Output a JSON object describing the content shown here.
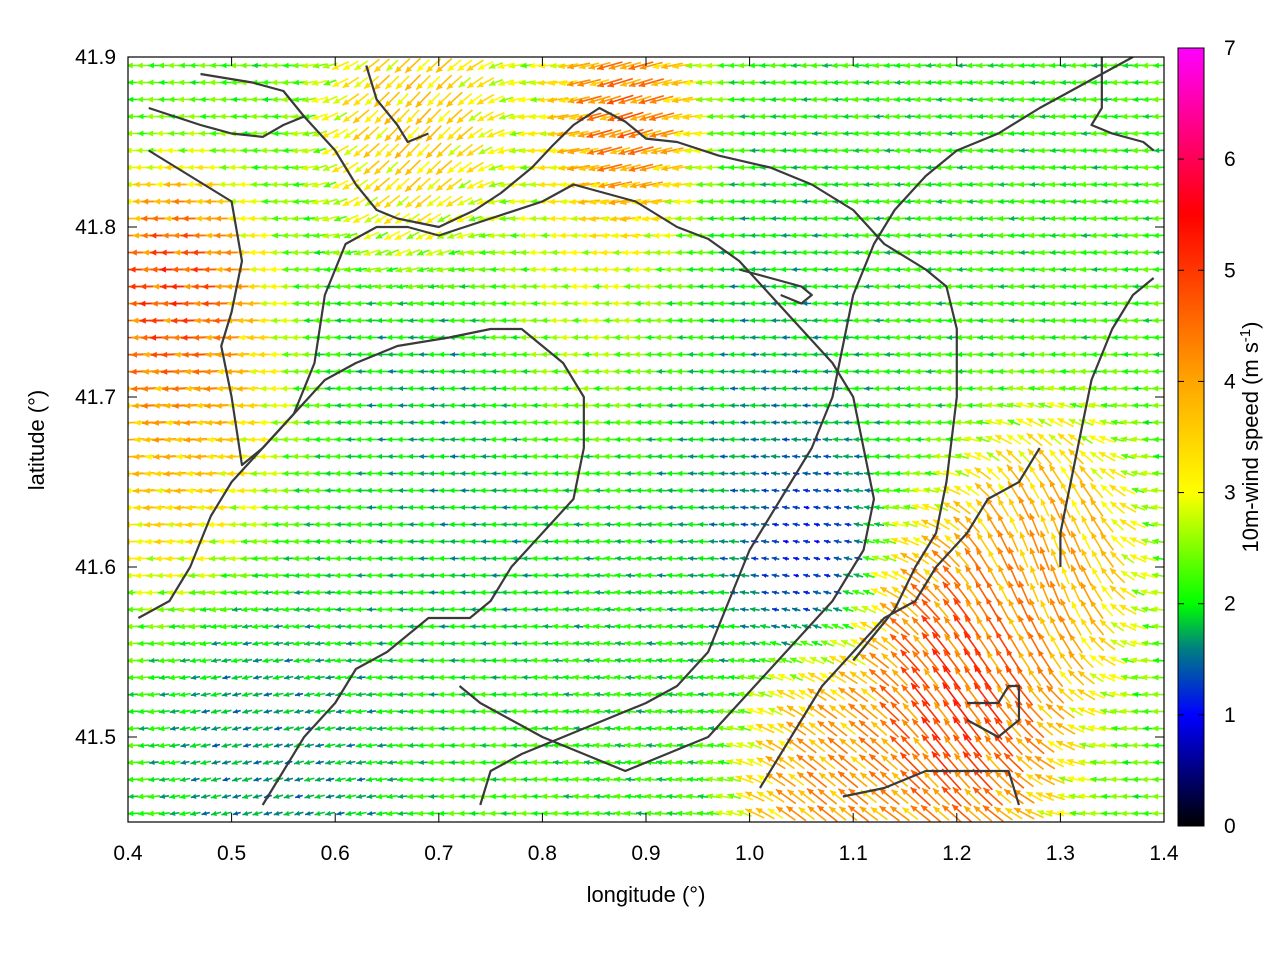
{
  "chart_data": {
    "type": "vector-field",
    "xlabel": "longitude (°)",
    "ylabel": "latitude (°)",
    "xlim": [
      0.4,
      1.4
    ],
    "ylim": [
      41.45,
      41.9
    ],
    "xticks": [
      "0.4",
      "0.5",
      "0.6",
      "0.7",
      "0.8",
      "0.9",
      "1.0",
      "1.1",
      "1.2",
      "1.3",
      "1.4"
    ],
    "yticks": [
      "41.5",
      "41.6",
      "41.7",
      "41.8",
      "41.9"
    ],
    "grid": false,
    "colorbar": {
      "label_main": "10m-wind speed (m s",
      "label_sup": "-1",
      "label_close": ")",
      "range": [
        0,
        7
      ],
      "ticks": [
        "0",
        "1",
        "2",
        "3",
        "4",
        "5",
        "6",
        "7"
      ],
      "stops": [
        {
          "v": 0.0,
          "color": "#000000"
        },
        {
          "v": 1.0,
          "color": "#0000ff"
        },
        {
          "v": 1.6,
          "color": "#008080"
        },
        {
          "v": 2.0,
          "color": "#00ff00"
        },
        {
          "v": 3.0,
          "color": "#ffff00"
        },
        {
          "v": 4.0,
          "color": "#ffa500"
        },
        {
          "v": 5.5,
          "color": "#ff0000"
        },
        {
          "v": 7.0,
          "color": "#ff00ff"
        }
      ]
    },
    "wind_field": {
      "lon_step": 0.01,
      "lat_step": 0.01,
      "regimes": [
        {
          "lon": 0.45,
          "lat": 41.75,
          "speed": 5.2,
          "dir_deg": 180,
          "radius": 0.05
        },
        {
          "lon": 0.47,
          "lat": 41.68,
          "speed": 3.8,
          "dir_deg": 185,
          "radius": 0.07
        },
        {
          "lon": 0.88,
          "lat": 41.85,
          "speed": 5.0,
          "dir_deg": 205,
          "radius": 0.05
        },
        {
          "lon": 0.68,
          "lat": 41.85,
          "speed": 3.6,
          "dir_deg": 235,
          "radius": 0.06
        },
        {
          "lon": 0.85,
          "lat": 41.75,
          "speed": 3.1,
          "dir_deg": 180,
          "radius": 0.09
        },
        {
          "lon": 0.95,
          "lat": 41.68,
          "speed": 1.5,
          "dir_deg": 180,
          "radius": 0.12
        },
        {
          "lon": 0.72,
          "lat": 41.68,
          "speed": 1.6,
          "dir_deg": 180,
          "radius": 0.1
        },
        {
          "lon": 1.2,
          "lat": 41.53,
          "speed": 5.0,
          "dir_deg": 120,
          "radius": 0.07
        },
        {
          "lon": 1.07,
          "lat": 41.48,
          "speed": 4.2,
          "dir_deg": 135,
          "radius": 0.06
        },
        {
          "lon": 1.28,
          "lat": 41.61,
          "speed": 4.0,
          "dir_deg": 100,
          "radius": 0.06
        },
        {
          "lon": 0.6,
          "lat": 41.6,
          "speed": 2.0,
          "dir_deg": 180,
          "radius": 0.1
        },
        {
          "lon": 1.2,
          "lat": 41.85,
          "speed": 2.0,
          "dir_deg": 185,
          "radius": 0.14
        },
        {
          "lon": 0.55,
          "lat": 41.5,
          "speed": 1.4,
          "dir_deg": 200,
          "radius": 0.08
        },
        {
          "lon": 0.9,
          "lat": 41.55,
          "speed": 2.0,
          "dir_deg": 170,
          "radius": 0.08
        },
        {
          "lon": 1.05,
          "lat": 41.61,
          "speed": 0.7,
          "dir_deg": 160,
          "radius": 0.05
        }
      ]
    },
    "contours": [
      [
        [
          0.42,
          41.87
        ],
        [
          0.47,
          41.86
        ],
        [
          0.5,
          41.855
        ],
        [
          0.53,
          41.853
        ],
        [
          0.55,
          41.86
        ],
        [
          0.57,
          41.865
        ],
        [
          0.6,
          41.845
        ],
        [
          0.62,
          41.825
        ],
        [
          0.64,
          41.81
        ],
        [
          0.66,
          41.805
        ],
        [
          0.7,
          41.8
        ],
        [
          0.735,
          41.81
        ],
        [
          0.76,
          41.82
        ],
        [
          0.79,
          41.835
        ],
        [
          0.81,
          41.848
        ],
        [
          0.83,
          41.86
        ],
        [
          0.855,
          41.87
        ],
        [
          0.88,
          41.862
        ],
        [
          0.9,
          41.852
        ],
        [
          0.93,
          41.85
        ],
        [
          0.97,
          41.842
        ],
        [
          1.02,
          41.835
        ],
        [
          1.06,
          41.825
        ],
        [
          1.1,
          41.81
        ],
        [
          1.13,
          41.79
        ],
        [
          1.17,
          41.775
        ],
        [
          1.19,
          41.765
        ],
        [
          1.2,
          41.74
        ],
        [
          1.2,
          41.7
        ],
        [
          1.19,
          41.65
        ],
        [
          1.18,
          41.62
        ],
        [
          1.16,
          41.6
        ],
        [
          1.14,
          41.575
        ],
        [
          1.12,
          41.56
        ],
        [
          1.1,
          41.545
        ]
      ],
      [
        [
          0.42,
          41.845
        ],
        [
          0.46,
          41.83
        ],
        [
          0.5,
          41.815
        ],
        [
          0.51,
          41.78
        ],
        [
          0.5,
          41.75
        ],
        [
          0.49,
          41.73
        ],
        [
          0.5,
          41.7
        ],
        [
          0.51,
          41.66
        ],
        [
          0.53,
          41.67
        ],
        [
          0.56,
          41.69
        ],
        [
          0.58,
          41.72
        ],
        [
          0.59,
          41.76
        ],
        [
          0.61,
          41.79
        ],
        [
          0.64,
          41.8
        ],
        [
          0.67,
          41.8
        ],
        [
          0.7,
          41.795
        ],
        [
          0.75,
          41.805
        ],
        [
          0.8,
          41.815
        ],
        [
          0.83,
          41.825
        ],
        [
          0.86,
          41.82
        ],
        [
          0.89,
          41.815
        ],
        [
          0.93,
          41.8
        ],
        [
          0.96,
          41.793
        ],
        [
          0.99,
          41.78
        ],
        [
          1.02,
          41.76
        ],
        [
          1.05,
          41.74
        ],
        [
          1.08,
          41.72
        ],
        [
          1.1,
          41.7
        ],
        [
          1.11,
          41.67
        ],
        [
          1.12,
          41.64
        ],
        [
          1.11,
          41.61
        ],
        [
          1.08,
          41.58
        ],
        [
          1.05,
          41.56
        ],
        [
          1.02,
          41.54
        ],
        [
          0.99,
          41.52
        ],
        [
          0.96,
          41.5
        ],
        [
          0.92,
          41.49
        ],
        [
          0.88,
          41.48
        ],
        [
          0.84,
          41.49
        ],
        [
          0.8,
          41.5
        ],
        [
          0.77,
          41.51
        ],
        [
          0.74,
          41.52
        ],
        [
          0.72,
          41.53
        ]
      ],
      [
        [
          0.41,
          41.57
        ],
        [
          0.44,
          41.58
        ],
        [
          0.46,
          41.6
        ],
        [
          0.48,
          41.63
        ],
        [
          0.5,
          41.65
        ],
        [
          0.53,
          41.67
        ],
        [
          0.56,
          41.69
        ],
        [
          0.59,
          41.71
        ],
        [
          0.62,
          41.72
        ],
        [
          0.66,
          41.73
        ],
        [
          0.71,
          41.735
        ],
        [
          0.75,
          41.74
        ],
        [
          0.78,
          41.74
        ],
        [
          0.8,
          41.73
        ],
        [
          0.82,
          41.72
        ],
        [
          0.84,
          41.7
        ],
        [
          0.84,
          41.67
        ],
        [
          0.83,
          41.64
        ],
        [
          0.8,
          41.62
        ],
        [
          0.77,
          41.6
        ],
        [
          0.75,
          41.58
        ],
        [
          0.73,
          41.57
        ],
        [
          0.71,
          41.57
        ],
        [
          0.69,
          41.57
        ],
        [
          0.67,
          41.56
        ],
        [
          0.65,
          41.55
        ],
        [
          0.62,
          41.54
        ],
        [
          0.6,
          41.52
        ],
        [
          0.57,
          41.5
        ],
        [
          0.55,
          41.48
        ],
        [
          0.53,
          41.46
        ]
      ],
      [
        [
          0.74,
          41.46
        ],
        [
          0.75,
          41.48
        ],
        [
          0.78,
          41.49
        ],
        [
          0.82,
          41.5
        ],
        [
          0.86,
          41.51
        ],
        [
          0.9,
          41.52
        ],
        [
          0.93,
          41.53
        ],
        [
          0.96,
          41.55
        ],
        [
          0.98,
          41.58
        ],
        [
          1.0,
          41.61
        ],
        [
          1.03,
          41.64
        ],
        [
          1.06,
          41.67
        ],
        [
          1.08,
          41.7
        ],
        [
          1.09,
          41.73
        ],
        [
          1.1,
          41.76
        ],
        [
          1.12,
          41.79
        ],
        [
          1.14,
          41.81
        ],
        [
          1.17,
          41.83
        ],
        [
          1.2,
          41.845
        ],
        [
          1.24,
          41.855
        ],
        [
          1.28,
          41.87
        ],
        [
          1.31,
          41.88
        ],
        [
          1.34,
          41.89
        ],
        [
          1.37,
          41.9
        ]
      ],
      [
        [
          1.3,
          41.6
        ],
        [
          1.3,
          41.62
        ],
        [
          1.31,
          41.65
        ],
        [
          1.32,
          41.68
        ],
        [
          1.33,
          41.71
        ],
        [
          1.35,
          41.74
        ],
        [
          1.37,
          41.76
        ],
        [
          1.39,
          41.77
        ]
      ],
      [
        [
          1.01,
          41.47
        ],
        [
          1.04,
          41.5
        ],
        [
          1.07,
          41.53
        ],
        [
          1.1,
          41.55
        ],
        [
          1.13,
          41.57
        ],
        [
          1.16,
          41.58
        ],
        [
          1.18,
          41.6
        ],
        [
          1.21,
          41.62
        ],
        [
          1.23,
          41.64
        ],
        [
          1.26,
          41.65
        ],
        [
          1.28,
          41.67
        ]
      ],
      [
        [
          1.21,
          41.52
        ],
        [
          1.24,
          41.52
        ],
        [
          1.25,
          41.53
        ],
        [
          1.26,
          41.53
        ],
        [
          1.26,
          41.51
        ],
        [
          1.24,
          41.5
        ],
        [
          1.21,
          41.51
        ]
      ],
      [
        [
          1.09,
          41.465
        ],
        [
          1.13,
          41.47
        ],
        [
          1.17,
          41.48
        ],
        [
          1.21,
          41.48
        ],
        [
          1.25,
          41.48
        ],
        [
          1.26,
          41.46
        ]
      ],
      [
        [
          0.99,
          41.775
        ],
        [
          1.02,
          41.77
        ],
        [
          1.05,
          41.765
        ],
        [
          1.06,
          41.76
        ],
        [
          1.05,
          41.755
        ],
        [
          1.03,
          41.76
        ]
      ],
      [
        [
          0.47,
          41.89
        ],
        [
          0.52,
          41.885
        ],
        [
          0.55,
          41.88
        ],
        [
          0.57,
          41.865
        ]
      ],
      [
        [
          0.63,
          41.895
        ],
        [
          0.64,
          41.875
        ],
        [
          0.66,
          41.86
        ],
        [
          0.67,
          41.85
        ],
        [
          0.69,
          41.855
        ]
      ],
      [
        [
          1.34,
          41.9
        ],
        [
          1.34,
          41.87
        ],
        [
          1.33,
          41.86
        ],
        [
          1.35,
          41.855
        ],
        [
          1.38,
          41.85
        ],
        [
          1.39,
          41.845
        ]
      ]
    ]
  }
}
